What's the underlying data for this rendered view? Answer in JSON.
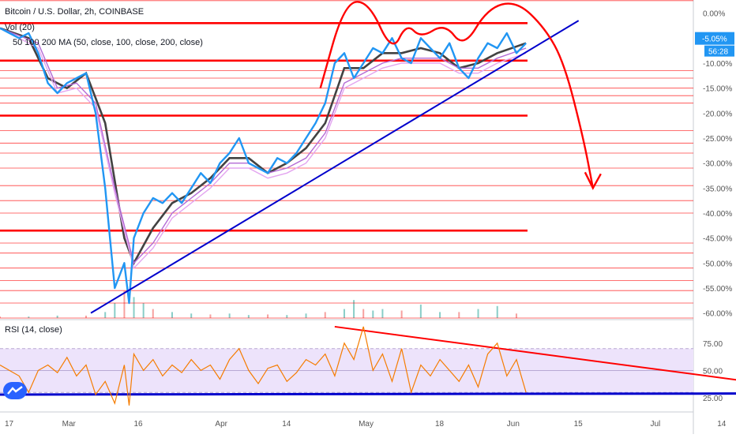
{
  "header": {
    "symbol_title": "Bitcoin / U.S. Dollar, 2h, COINBASE",
    "indicator_1": "Vol (20)",
    "indicator_2": "50 100 200 MA (50, close, 100, close, 200, close)",
    "rsi_title": "RSI (14, close)"
  },
  "price_badges": {
    "last_change": "-5.05%",
    "countdown": "56:28"
  },
  "colors": {
    "price": "#2196f3",
    "ma50": "#424242",
    "ma100": "#b36bd6",
    "ma200": "#e3a5f0",
    "horizontal": "#ff0000",
    "trend": "#0000cc",
    "rsi": "#f57c00",
    "rsi_band": "#ede3fb",
    "volume_up": "#26a69a",
    "volume_down": "#ef5350",
    "badge": "#2196f3"
  },
  "icons": {
    "logo": "tradingview-logo-icon"
  },
  "chart_data": [
    {
      "type": "line",
      "name": "price_panel",
      "y_unit": "% change",
      "yticks": [
        "0.00%",
        "-5.00%",
        "-10.00%",
        "-15.00%",
        "-20.00%",
        "-25.00%",
        "-30.00%",
        "-35.00%",
        "-40.00%",
        "-45.00%",
        "-50.00%",
        "-55.00%",
        "-60.00%"
      ],
      "ylim": [
        -61,
        2
      ],
      "x_ticks": [
        "17",
        "Mar",
        "16",
        "Apr",
        "14",
        "May",
        "18",
        "Jun",
        "15",
        "Jul",
        "14"
      ],
      "x_range_days": [
        0,
        145
      ],
      "x_tick_days": [
        0,
        12,
        27,
        44,
        58,
        74,
        90,
        105,
        119,
        135,
        149
      ],
      "series": [
        {
          "x": [
            0,
            2,
            4,
            6,
            8,
            10,
            12,
            14,
            16,
            18,
            20,
            22,
            24,
            26,
            27,
            28,
            30,
            32,
            34,
            36,
            38,
            40,
            42,
            44,
            46,
            48,
            50,
            52,
            54,
            56,
            58,
            60,
            62,
            64,
            66,
            68,
            70,
            72,
            74,
            76,
            78,
            80,
            82,
            84,
            86,
            88,
            90,
            92,
            94,
            96,
            98,
            100,
            102,
            104,
            106,
            108,
            110
          ],
          "y": [
            -3,
            -4,
            -5,
            -4,
            -8,
            -14,
            -16,
            -14,
            -13,
            -12,
            -20,
            -35,
            -55,
            -50,
            -58,
            -45,
            -40,
            -37,
            -38,
            -36,
            -38,
            -35,
            -32,
            -34,
            -30,
            -28,
            -25,
            -30,
            -31,
            -32,
            -29,
            -30,
            -28,
            -25,
            -22,
            -18,
            -10,
            -8,
            -13,
            -10,
            -7,
            -8,
            -5,
            -9,
            -10,
            -5,
            -7,
            -9,
            -6,
            -11,
            -13,
            -9,
            -6,
            -7,
            -4,
            -8,
            -6
          ]
        }
      ],
      "moving_averages": [
        {
          "period": 50,
          "x": [
            0,
            6,
            10,
            14,
            18,
            22,
            26,
            28,
            32,
            36,
            40,
            44,
            48,
            52,
            56,
            60,
            64,
            68,
            72,
            76,
            80,
            84,
            88,
            92,
            96,
            100,
            104,
            110
          ],
          "y": [
            -3,
            -5,
            -13,
            -15,
            -12,
            -22,
            -45,
            -50,
            -43,
            -38,
            -36,
            -33,
            -29,
            -29,
            -32,
            -30,
            -27,
            -22,
            -11,
            -11,
            -8,
            -8,
            -7,
            -8,
            -11,
            -10,
            -8,
            -6
          ]
        },
        {
          "period": 100,
          "x": [
            0,
            8,
            12,
            16,
            20,
            24,
            28,
            32,
            36,
            40,
            44,
            48,
            52,
            56,
            60,
            64,
            68,
            72,
            76,
            80,
            84,
            88,
            92,
            96,
            100,
            104,
            110
          ],
          "y": [
            -3,
            -6,
            -15,
            -14,
            -18,
            -35,
            -50,
            -46,
            -40,
            -37,
            -34,
            -30,
            -30,
            -32,
            -31,
            -29,
            -24,
            -14,
            -12,
            -10,
            -9,
            -9,
            -9,
            -11,
            -11,
            -9,
            -7
          ]
        },
        {
          "period": 200,
          "x": [
            0,
            8,
            12,
            16,
            20,
            24,
            28,
            32,
            36,
            40,
            44,
            48,
            52,
            56,
            60,
            64,
            68,
            72,
            76,
            80,
            84,
            88,
            92,
            96,
            100,
            104,
            110
          ],
          "y": [
            -3,
            -7,
            -16,
            -15,
            -19,
            -36,
            -51,
            -47,
            -41,
            -38,
            -35,
            -31,
            -31,
            -33,
            -32,
            -30,
            -25,
            -15,
            -13,
            -11,
            -10,
            -10,
            -10,
            -12,
            -12,
            -10,
            -8
          ]
        }
      ],
      "volume": {
        "x": [
          0,
          6,
          12,
          18,
          22,
          24,
          26,
          28,
          30,
          32,
          36,
          40,
          44,
          48,
          52,
          56,
          60,
          64,
          68,
          72,
          74,
          76,
          78,
          80,
          84,
          88,
          92,
          96,
          100,
          104,
          108
        ],
        "v": [
          0.05,
          0.05,
          0.08,
          0.08,
          0.2,
          0.5,
          0.9,
          0.7,
          0.5,
          0.3,
          0.2,
          0.15,
          0.12,
          0.15,
          0.1,
          0.12,
          0.1,
          0.15,
          0.2,
          0.3,
          0.6,
          0.3,
          0.25,
          0.3,
          0.25,
          0.45,
          0.2,
          0.2,
          0.3,
          0.4,
          0.15
        ]
      },
      "horizontal_levels": [
        2.5,
        -2,
        -9.5,
        -11.5,
        -13,
        -15,
        -16.5,
        -18,
        -20.5,
        -23.5,
        -26,
        -28,
        -31,
        -34.5,
        -37.5,
        -40,
        -43.5,
        -46,
        -48,
        -51,
        -53.5,
        -55.5,
        -58,
        -61
      ],
      "thick_levels": [
        -2,
        -9.5,
        -20.5,
        -43.5
      ],
      "trendline": [
        [
          19,
          -60
        ],
        [
          121,
          -1.5
        ]
      ],
      "annotation_arrow": {
        "x": [
          67,
          72,
          77,
          82,
          85,
          88,
          93,
          97,
          102,
          108,
          114,
          118,
          122,
          124
        ],
        "y": [
          -15,
          2,
          2.5,
          -8,
          -2,
          -5,
          -2,
          -7,
          1,
          2.5,
          -3,
          -10,
          -25,
          -35
        ]
      }
    },
    {
      "type": "line",
      "name": "rsi_panel",
      "yticks": [
        "75.00",
        "50.00",
        "25.00"
      ],
      "ylim": [
        15,
        95
      ],
      "band": [
        30,
        70
      ],
      "series": [
        {
          "name": "RSI (14, close)",
          "x": [
            0,
            4,
            6,
            8,
            10,
            12,
            14,
            16,
            18,
            20,
            22,
            24,
            26,
            27,
            28,
            30,
            32,
            34,
            36,
            38,
            40,
            42,
            44,
            46,
            48,
            50,
            52,
            54,
            56,
            58,
            60,
            62,
            64,
            66,
            68,
            70,
            72,
            74,
            76,
            78,
            80,
            82,
            84,
            86,
            88,
            90,
            92,
            94,
            96,
            98,
            100,
            102,
            104,
            106,
            108,
            110
          ],
          "y": [
            55,
            45,
            30,
            50,
            55,
            48,
            62,
            45,
            55,
            28,
            40,
            20,
            55,
            18,
            65,
            50,
            60,
            45,
            55,
            48,
            60,
            50,
            55,
            42,
            60,
            70,
            50,
            38,
            52,
            55,
            40,
            48,
            60,
            55,
            65,
            45,
            75,
            60,
            90,
            50,
            65,
            40,
            70,
            30,
            55,
            45,
            60,
            50,
            40,
            55,
            35,
            65,
            75,
            45,
            60,
            30
          ]
        }
      ],
      "trendline_red": [
        [
          70,
          90
        ],
        [
          160,
          38
        ]
      ],
      "trendline_blue": [
        [
          0,
          28
        ],
        [
          160,
          29
        ]
      ]
    }
  ]
}
